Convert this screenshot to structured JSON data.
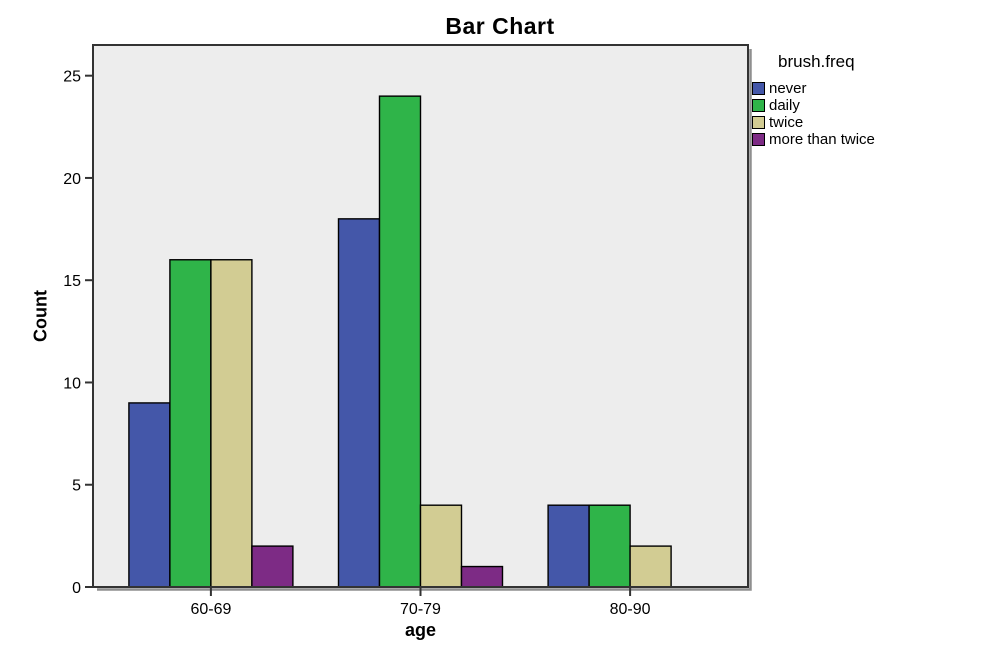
{
  "chart_data": {
    "type": "bar",
    "title": "Bar Chart",
    "xlabel": "age",
    "ylabel": "Count",
    "legend_title": "brush.freq",
    "legend_position": "outside-top-right",
    "categories": [
      "60-69",
      "70-79",
      "80-90"
    ],
    "series": [
      {
        "name": "never",
        "color": "#4457A9",
        "values": [
          9,
          18,
          4
        ]
      },
      {
        "name": "daily",
        "color": "#2FB449",
        "values": [
          16,
          24,
          4
        ]
      },
      {
        "name": "twice",
        "color": "#D2CC93",
        "values": [
          16,
          4,
          2
        ]
      },
      {
        "name": "more than twice",
        "color": "#7D2B85",
        "values": [
          2,
          1,
          0
        ]
      }
    ],
    "ylim": [
      0,
      26.5
    ],
    "yticks": [
      0,
      5,
      10,
      15,
      20,
      25
    ],
    "grid": false,
    "plot_bg": "#EDEDED",
    "axis_color": "#333333",
    "bar_border_color": "#000000"
  }
}
